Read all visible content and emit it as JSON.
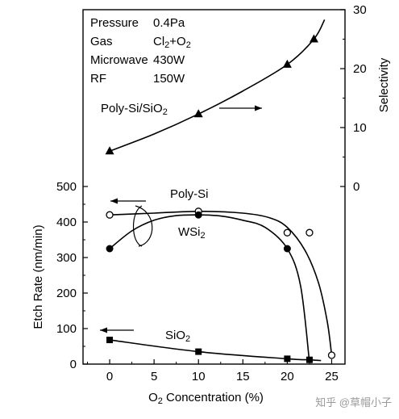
{
  "chart_data": {
    "type": "line",
    "xlabel_parts": [
      "O",
      "2",
      " Concentration (%)"
    ],
    "ylabel_left": "Etch Rate (nm/min)",
    "ylabel_right": "Selectivity",
    "xlim": [
      -3,
      26.5
    ],
    "x_ticks": [
      0,
      5,
      10,
      15,
      20,
      25
    ],
    "ylim_left": [
      0,
      540
    ],
    "y_ticks_left": [
      0,
      100,
      200,
      300,
      400,
      500
    ],
    "ylim_right": [
      -10,
      30
    ],
    "y_ticks_right": [
      0,
      10,
      20,
      30
    ],
    "conditions": [
      {
        "name": "Pressure",
        "value_parts": [
          "0.4Pa"
        ]
      },
      {
        "name": "Gas",
        "value_parts": [
          "Cl",
          "2",
          "+O",
          "2"
        ]
      },
      {
        "name": "Microwave",
        "value_parts": [
          "430W"
        ]
      },
      {
        "name": "RF",
        "value_parts": [
          "150W"
        ]
      }
    ],
    "series": [
      {
        "name_parts": [
          "Poly-Si/SiO",
          "2"
        ],
        "axis": "right",
        "marker": "triangle",
        "x": [
          0,
          10,
          20,
          23
        ],
        "y": [
          6,
          12.3,
          20.7,
          25
        ],
        "curve_x": [
          0,
          5,
          10,
          15,
          20,
          23,
          24.2
        ],
        "curve_y": [
          6,
          8.9,
          12.3,
          16.2,
          20.7,
          25,
          28.3
        ],
        "arrow": "right"
      },
      {
        "name_parts": [
          "Poly-Si"
        ],
        "axis": "left",
        "marker": "open-circle",
        "x": [
          0,
          10,
          20,
          22.5,
          25
        ],
        "y": [
          420,
          430,
          370,
          370,
          25
        ],
        "curve_x": [
          0,
          5,
          10,
          15,
          18,
          20,
          22,
          23.5,
          24.5,
          25
        ],
        "curve_y": [
          420,
          425,
          430,
          425,
          412,
          385,
          320,
          230,
          120,
          25
        ],
        "arrow": "left"
      },
      {
        "name_parts": [
          "WSi",
          "2"
        ],
        "axis": "left",
        "marker": "filled-circle",
        "x": [
          0,
          10,
          20
        ],
        "y": [
          325,
          420,
          325
        ],
        "curve_x": [
          0,
          2.5,
          5,
          7.5,
          10,
          12.5,
          15,
          17.5,
          20,
          21.5,
          22.5
        ],
        "curve_y": [
          325,
          375,
          405,
          418,
          420,
          417,
          405,
          385,
          325,
          220,
          5
        ],
        "arrow": "left"
      },
      {
        "name_parts": [
          "SiO",
          "2"
        ],
        "axis": "left",
        "marker": "filled-square",
        "x": [
          0,
          10,
          20,
          22.5
        ],
        "y": [
          68,
          35,
          15,
          12
        ],
        "curve_x": [
          0,
          10,
          20,
          22.5,
          23.8
        ],
        "curve_y": [
          68,
          35,
          15,
          12,
          10
        ],
        "arrow": "left"
      }
    ]
  },
  "watermark": "知乎 @草帽小子"
}
